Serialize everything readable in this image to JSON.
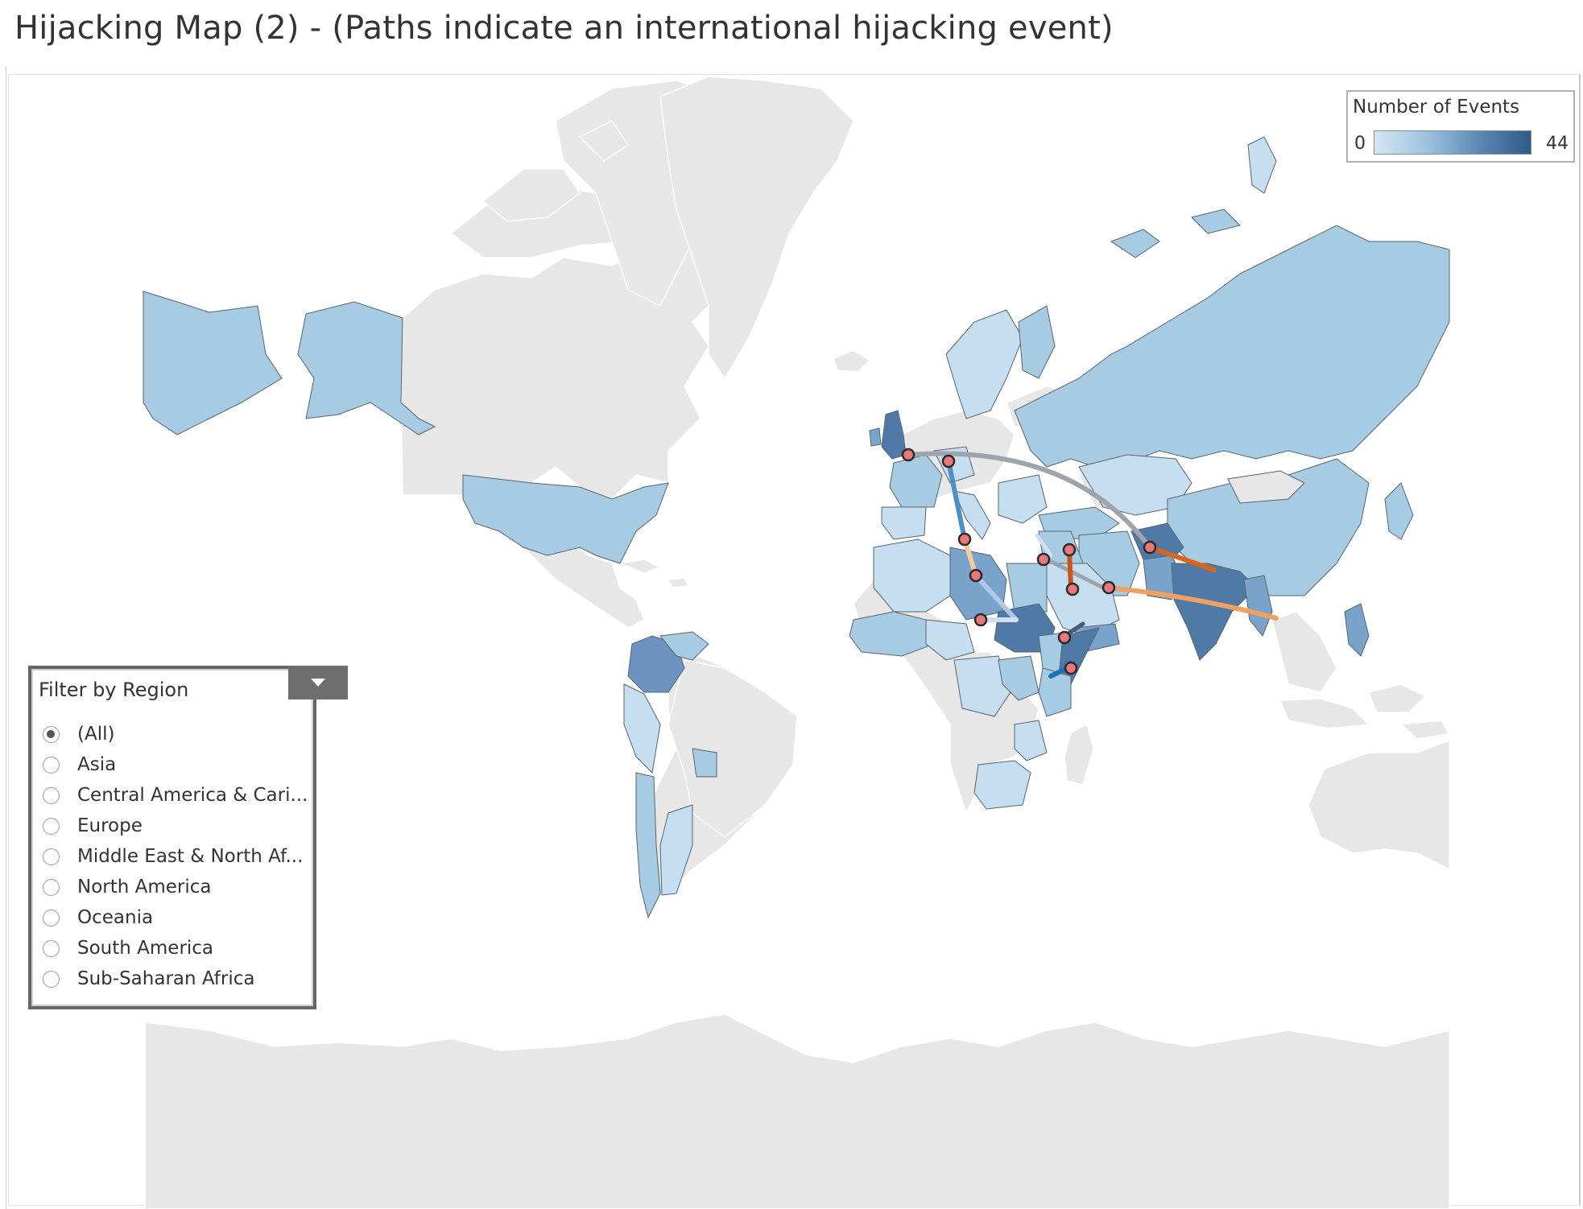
{
  "title": "Hijacking Map (2) - (Paths indicate an international hijacking event)",
  "legend": {
    "title": "Number of Events",
    "min": "0",
    "max": "44",
    "colors": [
      "#d4e7f4",
      "#9dc3df",
      "#5b89b6",
      "#2e5a88"
    ]
  },
  "filter": {
    "title": "Filter by Region",
    "menu_icon": "dropdown-arrow-icon",
    "selected": "(All)",
    "options": [
      "(All)",
      "Asia",
      "Central America & Cari...",
      "Europe",
      "Middle East & North Af...",
      "North America",
      "Oceania",
      "South America",
      "Sub-Saharan Africa"
    ]
  },
  "colors": {
    "land_no_data": "#e7e7e7",
    "low": "#c6dff0",
    "mid": "#a8cbe4",
    "high": "#7aa3cc",
    "max": "#4f7aa8",
    "event_dot": "#e8787a",
    "path_gray": "#9fa3ac",
    "path_orange": "#f0a060",
    "path_dark_orange": "#d9651c",
    "path_blue": "#4f8fc6"
  }
}
